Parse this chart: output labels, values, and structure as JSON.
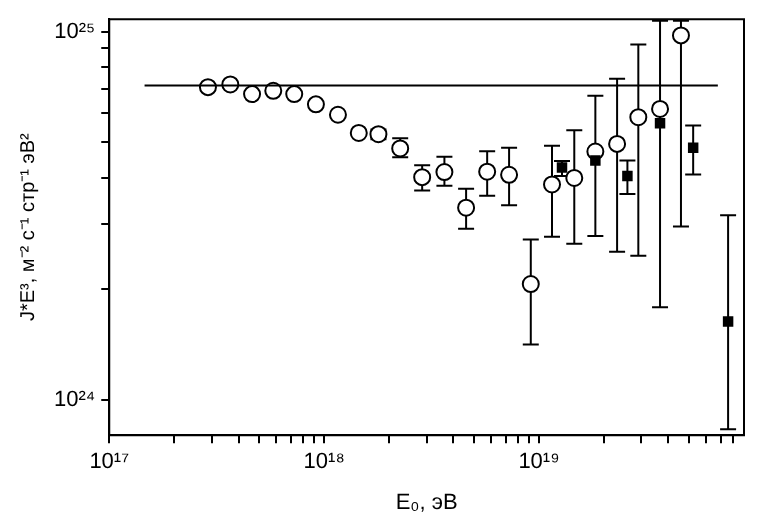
{
  "chart_data": {
    "type": "scatter",
    "xlabel": "E₀, эВ",
    "ylabel": "J*E³, м⁻² с⁻¹ стр⁻¹ эВ²",
    "log": "xy",
    "grid": false,
    "legend": false,
    "xlim": [
      1e+17,
      9e+19
    ],
    "ylim": [
      8e+23,
      1.08e+25
    ],
    "xticks": [
      {
        "value": 1e+17,
        "label": "10¹⁷"
      },
      {
        "value": 2e+17,
        "label": null
      },
      {
        "value": 3e+17,
        "label": null
      },
      {
        "value": 4e+17,
        "label": null
      },
      {
        "value": 5e+17,
        "label": null
      },
      {
        "value": 6e+17,
        "label": null
      },
      {
        "value": 7e+17,
        "label": null
      },
      {
        "value": 8e+17,
        "label": null
      },
      {
        "value": 9e+17,
        "label": null
      },
      {
        "value": 1e+18,
        "label": "10¹⁸"
      },
      {
        "value": 2e+18,
        "label": null
      },
      {
        "value": 3e+18,
        "label": null
      },
      {
        "value": 4e+18,
        "label": null
      },
      {
        "value": 5e+18,
        "label": null
      },
      {
        "value": 6e+18,
        "label": null
      },
      {
        "value": 7e+18,
        "label": null
      },
      {
        "value": 8e+18,
        "label": null
      },
      {
        "value": 9e+18,
        "label": null
      },
      {
        "value": 1e+19,
        "label": "10¹⁹"
      },
      {
        "value": 2e+19,
        "label": null
      },
      {
        "value": 3e+19,
        "label": null
      },
      {
        "value": 4e+19,
        "label": null
      },
      {
        "value": 5e+19,
        "label": null
      },
      {
        "value": 6e+19,
        "label": null
      },
      {
        "value": 7e+19,
        "label": null
      },
      {
        "value": 8e+19,
        "label": null
      }
    ],
    "yticks": [
      {
        "value": 1e+24,
        "label": "10²⁴"
      },
      {
        "value": 2e+24,
        "label": null
      },
      {
        "value": 3e+24,
        "label": null
      },
      {
        "value": 4e+24,
        "label": null
      },
      {
        "value": 5e+24,
        "label": null
      },
      {
        "value": 6e+24,
        "label": null
      },
      {
        "value": 7e+24,
        "label": null
      },
      {
        "value": 8e+24,
        "label": null
      },
      {
        "value": 9e+24,
        "label": null
      },
      {
        "value": 1e+25,
        "label": "10²⁵"
      }
    ],
    "series": [
      {
        "type": "scatter",
        "marker": "circle",
        "color": "#000000",
        "x": [
          2.88e+17,
          3.66e+17,
          4.62e+17,
          5.8e+17,
          7.26e+17,
          9.16e+17,
          1.16e+18,
          1.45e+18,
          1.79e+18,
          2.26e+18,
          2.86e+18,
          3.63e+18,
          4.58e+18,
          5.74e+18,
          7.26e+18,
          9.16e+18,
          1.15e+19,
          1.46e+19,
          1.83e+19,
          2.31e+19,
          2.9e+19,
          3.66e+19,
          4.58e+19
        ],
        "values": [
          7.06e+24,
          7.18e+24,
          6.76e+24,
          6.9e+24,
          6.76e+24,
          6.34e+24,
          5.94e+24,
          5.3e+24,
          5.26e+24,
          4.81e+24,
          4.02e+24,
          4.15e+24,
          3.32e+24,
          4.16e+24,
          4.08e+24,
          2.06e+24,
          3.84e+24,
          4e+24,
          4.72e+24,
          4.95e+24,
          5.85e+24,
          6.16e+24,
          9.76e+24
        ],
        "errors": [
          null,
          null,
          null,
          null,
          null,
          null,
          null,
          null,
          [
            5.1e+24,
            5.42e+24
          ],
          [
            4.55e+24,
            5.13e+24
          ],
          [
            3.7e+24,
            4.33e+24
          ],
          [
            3.81e+24,
            4.57e+24
          ],
          [
            2.91e+24,
            3.74e+24
          ],
          [
            3.58e+24,
            4.73e+24
          ],
          [
            3.37e+24,
            4.83e+24
          ],
          [
            1.41e+24,
            2.72e+24
          ],
          [
            2.77e+24,
            4.89e+24
          ],
          [
            2.65e+24,
            5.39e+24
          ],
          [
            2.78e+24,
            6.69e+24
          ],
          [
            2.52e+24,
            7.44e+24
          ],
          [
            2.46e+24,
            9.22e+24
          ],
          [
            1.78e+24,
            1.07e+25
          ],
          [
            2.95e+24,
            1.07e+25
          ]
        ]
      },
      {
        "type": "scatter",
        "marker": "square",
        "color": "#000000",
        "x": [
          1.28e+19,
          1.83e+19,
          2.58e+19,
          3.66e+19,
          5.22e+19,
          7.59e+19
        ],
        "values": [
          4.27e+24,
          4.46e+24,
          4.05e+24,
          5.63e+24,
          4.83e+24,
          1.63e+24
        ],
        "errors": [
          [
            4.05e+24,
            4.45e+24
          ],
          null,
          [
            3.62e+24,
            4.46e+24
          ],
          null,
          [
            4.09e+24,
            5.55e+24
          ],
          [
            8.3e+23,
            3.17e+24
          ]
        ]
      },
      {
        "type": "line",
        "marker": "none",
        "line_style": "solid",
        "color": "#000000",
        "x": [
          1.46e+17,
          6.8e+19
        ],
        "values": [
          7.13e+24,
          7.13e+24
        ]
      }
    ]
  }
}
